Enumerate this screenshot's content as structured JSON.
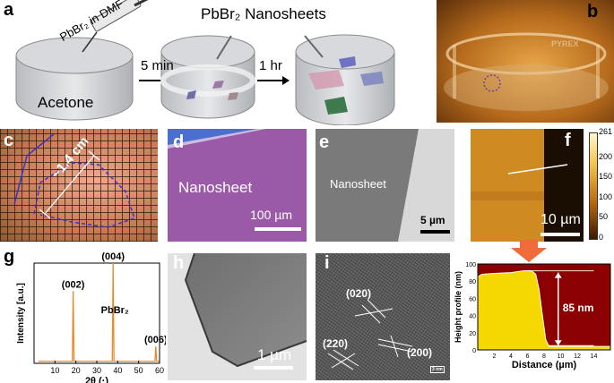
{
  "figure": {
    "panel_letters": [
      "a",
      "b",
      "c",
      "d",
      "e",
      "f",
      "g",
      "h",
      "i"
    ],
    "a": {
      "syringe_label": "PbBr₂ in DMF",
      "title": "PbBr₂ Nanosheets",
      "solvent": "Acetone",
      "step1": "5 min",
      "step2": "1 hr"
    },
    "b": {
      "beaker_text": "PYREX"
    },
    "c": {
      "dimension": "~1.4 cm"
    },
    "d": {
      "label": "Nanosheet",
      "scale": "100 µm"
    },
    "e": {
      "label": "Nanosheet",
      "scale": "5 µm"
    },
    "f": {
      "scale": "10 µm",
      "colorbar_ticks": [
        "261",
        "200",
        "150",
        "100",
        "50",
        "0"
      ]
    },
    "h": {
      "scale": "1 µm"
    },
    "i": {
      "planes": [
        "(020)",
        "(220)",
        "(200)"
      ],
      "scale": "3 nm"
    },
    "colors": {
      "orange": "#f06a3a",
      "xrd": "#e98a2c",
      "afm_bg": "#8b0000",
      "afm_fill": "#f5d800"
    }
  },
  "chart_data": [
    {
      "panel": "g",
      "type": "line",
      "title": "PbBr₂",
      "xlabel": "2θ (·)",
      "ylabel": "Intensity [a.u.]",
      "xlim": [
        0,
        60
      ],
      "xticks": [
        10,
        20,
        30,
        40,
        50,
        60
      ],
      "peaks": [
        {
          "x": 18.7,
          "y": 0.72,
          "label": "(002)"
        },
        {
          "x": 37.8,
          "y": 1.0,
          "label": "(004)"
        },
        {
          "x": 58.2,
          "y": 0.17,
          "label": "(006)"
        }
      ]
    },
    {
      "panel": "f-profile",
      "type": "area",
      "xlabel": "Distance (µm)",
      "ylabel": "Height profile (nm)",
      "xlim": [
        0,
        16
      ],
      "ylim": [
        0,
        100
      ],
      "xticks": [
        2,
        4,
        6,
        8,
        10,
        12,
        14
      ],
      "yticks": [
        0,
        20,
        40,
        60,
        80,
        100
      ],
      "annotation": "85 nm",
      "x": [
        0,
        0.5,
        2,
        4,
        5.5,
        6.5,
        7.0,
        7.4,
        7.8,
        8.2,
        8.6,
        9,
        12,
        16
      ],
      "y": [
        85,
        88,
        89,
        90,
        92,
        92,
        88,
        70,
        40,
        12,
        4,
        4,
        4,
        4
      ]
    }
  ]
}
